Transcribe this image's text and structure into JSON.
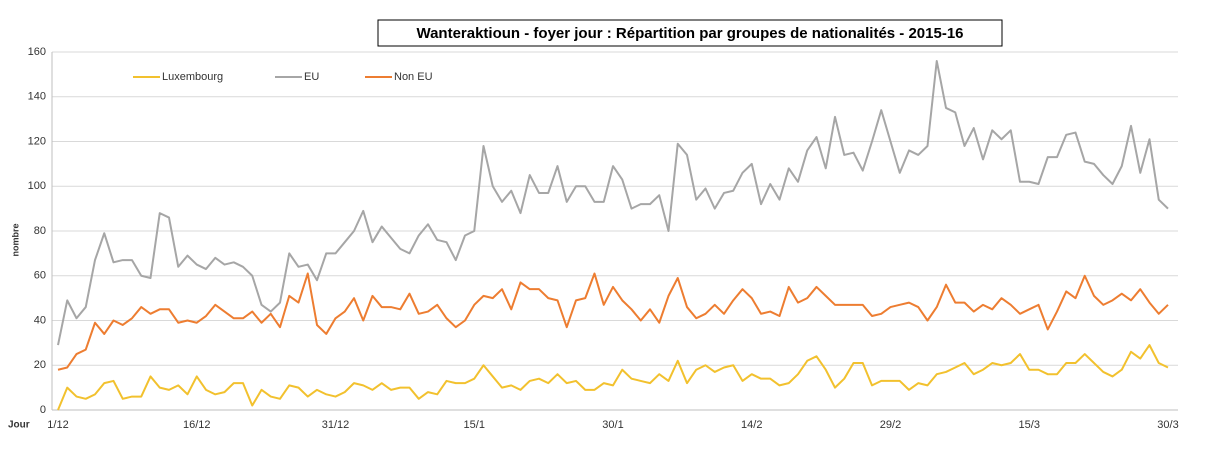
{
  "chart_data": {
    "type": "line",
    "title": "Wanteraktioun - foyer jour : Répartition par groupes de nationalités - 2015-16",
    "x_label": "Jour",
    "y_label": "nombre",
    "categories": [
      "1/12",
      null,
      null,
      null,
      null,
      null,
      null,
      null,
      null,
      null,
      null,
      null,
      null,
      null,
      null,
      "16/12",
      null,
      null,
      null,
      null,
      null,
      null,
      null,
      null,
      null,
      null,
      null,
      null,
      null,
      null,
      "31/12",
      null,
      null,
      null,
      null,
      null,
      null,
      null,
      null,
      null,
      null,
      null,
      null,
      null,
      null,
      "15/1",
      null,
      null,
      null,
      null,
      null,
      null,
      null,
      null,
      null,
      null,
      null,
      null,
      null,
      null,
      "30/1",
      null,
      null,
      null,
      null,
      null,
      null,
      null,
      null,
      null,
      null,
      null,
      null,
      null,
      null,
      "14/2",
      null,
      null,
      null,
      null,
      null,
      null,
      null,
      null,
      null,
      null,
      null,
      null,
      null,
      null,
      "29/2",
      null,
      null,
      null,
      null,
      null,
      null,
      null,
      null,
      null,
      null,
      null,
      null,
      null,
      null,
      "15/3",
      null,
      null,
      null,
      null,
      null,
      null,
      null,
      null,
      null,
      null,
      null,
      null,
      null,
      null,
      "30/3"
    ],
    "series": [
      {
        "name": "Luxembourg",
        "color": "#f2c12e",
        "values": [
          0,
          10,
          6,
          5,
          7,
          12,
          13,
          5,
          6,
          6,
          15,
          10,
          9,
          11,
          7,
          15,
          9,
          7,
          8,
          12,
          12,
          2,
          9,
          6,
          5,
          11,
          10,
          6,
          9,
          7,
          6,
          8,
          12,
          11,
          9,
          12,
          9,
          10,
          10,
          5,
          8,
          7,
          13,
          12,
          12,
          14,
          20,
          15,
          10,
          11,
          9,
          13,
          14,
          12,
          16,
          12,
          13,
          9,
          9,
          12,
          11,
          18,
          14,
          13,
          12,
          16,
          13,
          22,
          12,
          18,
          20,
          17,
          19,
          20,
          13,
          16,
          14,
          14,
          11,
          12,
          16,
          22,
          24,
          18,
          10,
          14,
          21,
          21,
          11,
          13,
          13,
          13,
          9,
          12,
          11,
          16,
          17,
          19,
          21,
          16,
          18,
          21,
          20,
          21,
          25,
          18,
          18,
          16,
          16,
          21,
          21,
          25,
          21,
          17,
          15,
          18,
          26,
          23,
          29,
          21,
          19
        ]
      },
      {
        "name": "EU",
        "color": "#a6a6a6",
        "values": [
          29,
          49,
          41,
          46,
          67,
          79,
          66,
          67,
          67,
          60,
          59,
          88,
          86,
          64,
          69,
          65,
          63,
          68,
          65,
          66,
          64,
          60,
          47,
          44,
          48,
          70,
          64,
          65,
          58,
          70,
          70,
          75,
          80,
          89,
          75,
          82,
          77,
          72,
          70,
          78,
          83,
          76,
          75,
          67,
          78,
          80,
          118,
          100,
          93,
          98,
          88,
          105,
          97,
          97,
          109,
          93,
          100,
          100,
          93,
          93,
          109,
          103,
          90,
          92,
          92,
          96,
          80,
          119,
          114,
          94,
          99,
          90,
          97,
          98,
          106,
          110,
          92,
          101,
          94,
          108,
          102,
          116,
          122,
          108,
          131,
          114,
          115,
          107,
          120,
          134,
          120,
          106,
          116,
          114,
          118,
          156,
          135,
          133,
          118,
          126,
          112,
          125,
          121,
          125,
          102,
          102,
          101,
          113,
          113,
          123,
          124,
          111,
          110,
          105,
          101,
          109,
          127,
          106,
          121,
          94,
          90
        ]
      },
      {
        "name": "Non EU",
        "color": "#ed7d31",
        "values": [
          18,
          19,
          25,
          27,
          39,
          34,
          40,
          38,
          41,
          46,
          43,
          45,
          45,
          39,
          40,
          39,
          42,
          47,
          44,
          41,
          41,
          44,
          39,
          43,
          37,
          51,
          48,
          61,
          38,
          34,
          41,
          44,
          50,
          40,
          51,
          46,
          46,
          45,
          52,
          43,
          44,
          47,
          41,
          37,
          40,
          47,
          51,
          50,
          54,
          45,
          57,
          54,
          54,
          50,
          49,
          37,
          49,
          50,
          61,
          47,
          55,
          49,
          45,
          40,
          45,
          39,
          51,
          59,
          46,
          41,
          43,
          47,
          43,
          49,
          54,
          50,
          43,
          44,
          42,
          55,
          48,
          50,
          55,
          51,
          47,
          47,
          47,
          47,
          42,
          43,
          46,
          47,
          48,
          46,
          40,
          46,
          56,
          48,
          48,
          44,
          47,
          45,
          50,
          47,
          43,
          45,
          47,
          36,
          44,
          53,
          50,
          60,
          51,
          47,
          49,
          52,
          49,
          54,
          48,
          43,
          47
        ]
      }
    ],
    "ylim": [
      0,
      160
    ],
    "yticks": [
      0,
      20,
      40,
      60,
      80,
      100,
      120,
      140,
      160
    ],
    "grid": true,
    "legend": "top-left"
  }
}
